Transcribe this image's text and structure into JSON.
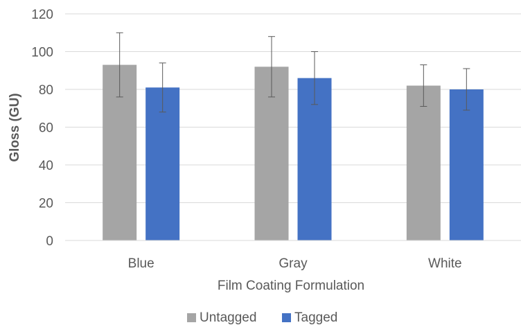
{
  "chart_data": {
    "type": "bar",
    "title": "",
    "xlabel": "Film Coating Formulation",
    "ylabel": "Gloss (GU)",
    "categories": [
      "Blue",
      "Gray",
      "White"
    ],
    "series": [
      {
        "name": "Untagged",
        "color": "#a5a5a5",
        "values": [
          93,
          92,
          82
        ],
        "error_low": [
          76,
          76,
          71
        ],
        "error_high": [
          110,
          108,
          93
        ]
      },
      {
        "name": "Tagged",
        "color": "#4472c4",
        "values": [
          81,
          86,
          80
        ],
        "error_low": [
          68,
          72,
          69
        ],
        "error_high": [
          94,
          100,
          91
        ]
      }
    ],
    "ylim": [
      0,
      120
    ],
    "yticks": [
      0,
      20,
      40,
      60,
      80,
      100,
      120
    ],
    "grid": true,
    "legend_position": "bottom"
  }
}
